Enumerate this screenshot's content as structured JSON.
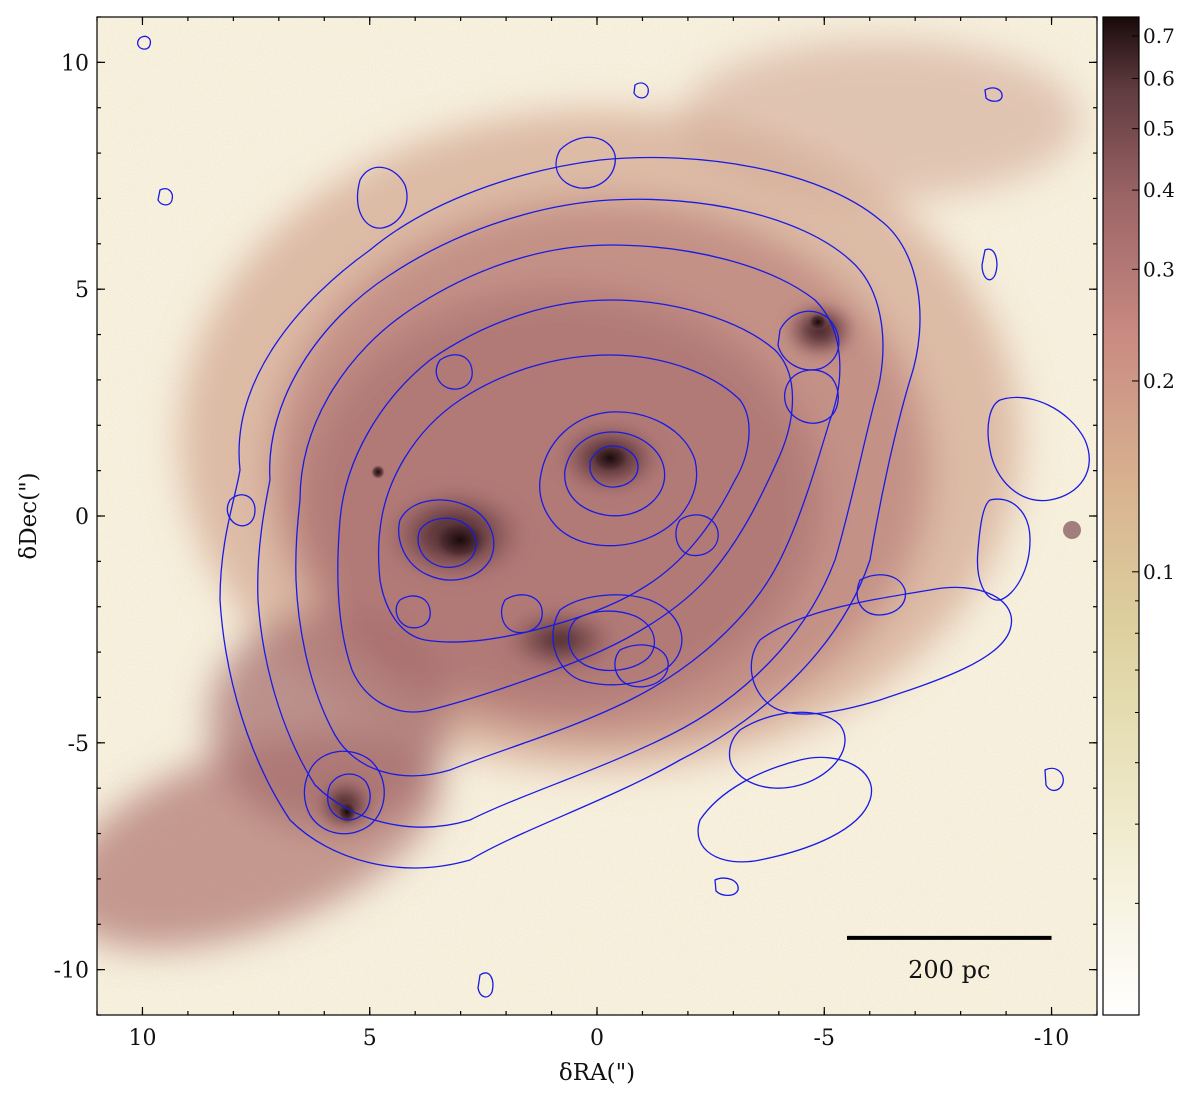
{
  "axes": {
    "xlabel": "δRA(\")",
    "ylabel": "δDec(\")",
    "xlim": [
      11,
      -11
    ],
    "ylim": [
      -11,
      11
    ],
    "x_ticks": [
      {
        "value": 10,
        "label": "10"
      },
      {
        "value": 5,
        "label": "5"
      },
      {
        "value": 0,
        "label": "0"
      },
      {
        "value": -5,
        "label": "-5"
      },
      {
        "value": -10,
        "label": "-10"
      }
    ],
    "y_ticks": [
      {
        "value": 10,
        "label": "10"
      },
      {
        "value": 5,
        "label": "5"
      },
      {
        "value": 0,
        "label": "0"
      },
      {
        "value": -5,
        "label": "-5"
      },
      {
        "value": -10,
        "label": "-10"
      }
    ]
  },
  "colorbar": {
    "scale": "log",
    "range": [
      0.02,
      0.75
    ],
    "ticks": [
      {
        "value": 0.7,
        "label": "0.7"
      },
      {
        "value": 0.6,
        "label": "0.6"
      },
      {
        "value": 0.5,
        "label": "0.5"
      },
      {
        "value": 0.4,
        "label": "0.4"
      },
      {
        "value": 0.3,
        "label": "0.3"
      },
      {
        "value": 0.2,
        "label": "0.2"
      },
      {
        "value": 0.1,
        "label": "0.1"
      }
    ],
    "colors": [
      "#ffffff",
      "#efeacb",
      "#ddd29f",
      "#d9b591",
      "#c98b82",
      "#9b6466",
      "#5e3a3e",
      "#1a0a0a"
    ]
  },
  "scalebar": {
    "label": "200 pc",
    "from_ra": -5.5,
    "to_ra": -10,
    "dec": -9.3
  },
  "image": {
    "contour_color": "#1a1ae6",
    "nucleus_ra": -0.3,
    "nucleus_dec": 1.3
  }
}
